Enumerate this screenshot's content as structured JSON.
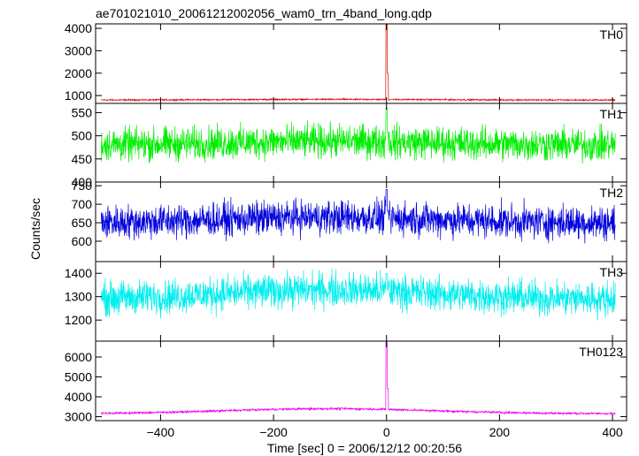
{
  "chart_data": {
    "type": "line",
    "title": "ae701021010_20061212002056_wam0_trn_4band_long.qdp",
    "xlabel": "Time [sec] 0 = 2006/12/12 00:20:56",
    "ylabel": "Counts/sec",
    "xlim": [
      -515,
      425
    ],
    "xticks": [
      -400,
      -200,
      0,
      200,
      400
    ],
    "xtick_labels": [
      "−400",
      "−200",
      "0",
      "200",
      "400"
    ],
    "panels": [
      {
        "name": "TH0",
        "color": "#dd0000",
        "ylim": [
          650,
          4200
        ],
        "yticks": [
          1000,
          2000,
          3000,
          4000
        ],
        "ytick_labels": [
          "1000",
          "2000",
          "3000",
          "4000"
        ],
        "baseline": 800,
        "peak": 4200,
        "noise": 20,
        "hump": 30
      },
      {
        "name": "TH1",
        "color": "#00ee00",
        "ylim": [
          400,
          570
        ],
        "yticks": [
          400,
          450,
          500,
          550
        ],
        "ytick_labels": [
          "400",
          "450",
          "500",
          "550"
        ],
        "baseline": 480,
        "peak": 560,
        "noise": 22,
        "hump": 8
      },
      {
        "name": "TH2",
        "color": "#0000dd",
        "ylim": [
          545,
          760
        ],
        "yticks": [
          600,
          650,
          700,
          750
        ],
        "ytick_labels": [
          "600",
          "650",
          "700",
          "750"
        ],
        "baseline": 650,
        "peak": 740,
        "noise": 28,
        "hump": 15
      },
      {
        "name": "TH3",
        "color": "#00eeee",
        "ylim": [
          1110,
          1450
        ],
        "yticks": [
          1200,
          1300,
          1400
        ],
        "ytick_labels": [
          "1200",
          "1300",
          "1400"
        ],
        "baseline": 1290,
        "peak": 1400,
        "noise": 45,
        "hump": 40
      },
      {
        "name": "TH0123",
        "color": "#ee00ee",
        "ylim": [
          2800,
          6800
        ],
        "yticks": [
          3000,
          4000,
          5000,
          6000
        ],
        "ytick_labels": [
          "3000",
          "4000",
          "5000",
          "6000"
        ],
        "baseline": 3150,
        "peak": 6800,
        "noise": 35,
        "hump": 250
      }
    ],
    "burst_time": 0,
    "grid": false
  }
}
